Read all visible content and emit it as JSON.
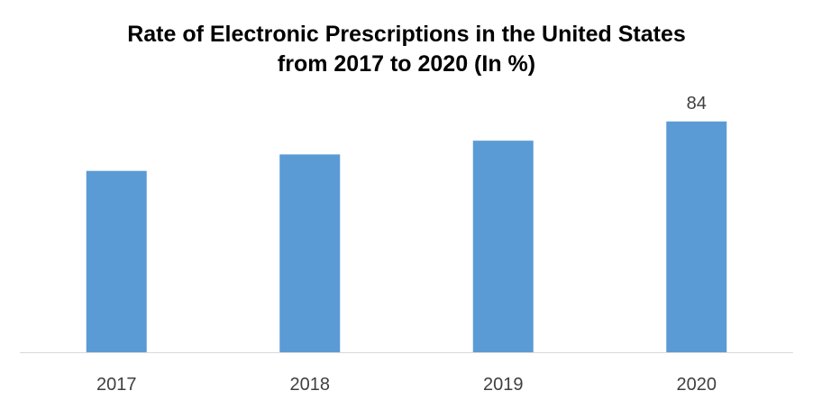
{
  "chart_data": {
    "type": "bar",
    "title": "Rate of Electronic Prescriptions in the United States",
    "subtitle": "from 2017 to 2020 (In %)",
    "categories": [
      "2017",
      "2018",
      "2019",
      "2020"
    ],
    "values": [
      66,
      72,
      77,
      84
    ],
    "data_labels": [
      "",
      "",
      "",
      "84"
    ],
    "xlabel": "",
    "ylabel": "",
    "ylim": [
      0,
      100
    ],
    "grid": false,
    "legend": "none",
    "bar_color": "#5B9BD5",
    "axis_color": "#D9D9D9"
  }
}
